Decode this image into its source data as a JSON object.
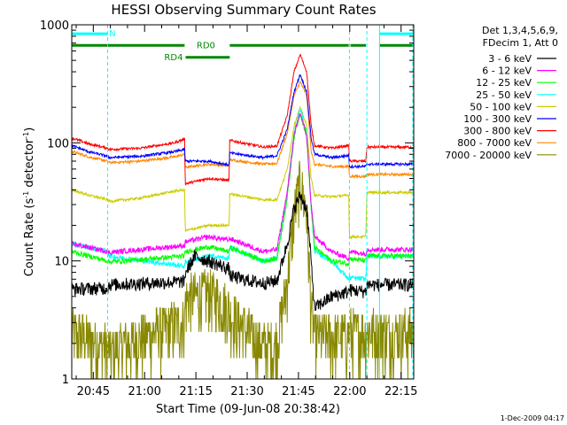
{
  "chart_data": {
    "type": "line",
    "title": "HESSI Observing Summary Count Rates",
    "xlabel": "Start Time (09-Jun-08 20:38:42)",
    "ylabel_main": "Count Rate (s",
    "ylabel_sup1": "-1",
    "ylabel_mid": " detector",
    "ylabel_sup2": "-1",
    "ylabel_end": ")",
    "yscale": "log",
    "ylim": [
      1,
      1000
    ],
    "xlim_minutes": [
      0,
      100
    ],
    "x_ticks": [
      {
        "label": "20:45",
        "t": 6.3
      },
      {
        "label": "21:00",
        "t": 21.3
      },
      {
        "label": "21:15",
        "t": 36.3
      },
      {
        "label": "21:30",
        "t": 51.3
      },
      {
        "label": "21:45",
        "t": 66.3
      },
      {
        "label": "22:00",
        "t": 81.3
      },
      {
        "label": "22:15",
        "t": 96.3
      }
    ],
    "y_ticks": [
      {
        "label": "1",
        "v": 1
      },
      {
        "label": "10",
        "v": 10
      },
      {
        "label": "100",
        "v": 100
      },
      {
        "label": "1000",
        "v": 1000
      }
    ],
    "legend_header": [
      "Det 1,3,4,5,6,9,",
      "FDecim 1, Att 0"
    ],
    "series": [
      {
        "name": "3 - 6 keV",
        "color": "#000000",
        "points": [
          [
            0,
            5.8
          ],
          [
            10.5,
            5.9
          ],
          [
            11,
            6.3
          ],
          [
            33,
            6.7
          ],
          [
            33.2,
            8.0
          ],
          [
            36,
            11
          ],
          [
            40,
            10
          ],
          [
            46,
            8.6
          ],
          [
            46.2,
            7.5
          ],
          [
            50,
            7.0
          ],
          [
            56,
            6.5
          ],
          [
            60,
            6.8
          ],
          [
            63,
            14
          ],
          [
            65,
            28
          ],
          [
            66.8,
            36
          ],
          [
            68.7,
            28
          ],
          [
            70,
            10
          ],
          [
            71,
            4.0
          ],
          [
            76,
            5.0
          ],
          [
            81,
            5.5
          ],
          [
            81.2,
            5.7
          ],
          [
            86,
            5.5
          ],
          [
            86.3,
            6.3
          ],
          [
            100,
            6.3
          ]
        ]
      },
      {
        "name": "6 - 12 keV",
        "color": "#ff00ff",
        "points": [
          [
            0,
            14
          ],
          [
            10.5,
            12
          ],
          [
            11,
            11.8
          ],
          [
            33,
            13.5
          ],
          [
            33.2,
            14.5
          ],
          [
            40,
            16
          ],
          [
            46,
            15
          ],
          [
            46.2,
            15.5
          ],
          [
            56,
            12
          ],
          [
            60,
            12.5
          ],
          [
            63,
            38
          ],
          [
            65,
            115
          ],
          [
            66.8,
            180
          ],
          [
            68.7,
            115
          ],
          [
            70,
            30
          ],
          [
            71,
            16
          ],
          [
            76,
            12
          ],
          [
            81,
            10.5
          ],
          [
            81.2,
            12
          ],
          [
            86,
            11.5
          ],
          [
            86.3,
            12.5
          ],
          [
            100,
            12.5
          ]
        ]
      },
      {
        "name": "12 - 25 keV",
        "color": "#00ff00",
        "points": [
          [
            0,
            12
          ],
          [
            10.5,
            10
          ],
          [
            11,
            9.8
          ],
          [
            33,
            11
          ],
          [
            33.2,
            12
          ],
          [
            40,
            13.2
          ],
          [
            46,
            12
          ],
          [
            46.2,
            13
          ],
          [
            56,
            10
          ],
          [
            60,
            10.5
          ],
          [
            63,
            34
          ],
          [
            65,
            112
          ],
          [
            66.8,
            180
          ],
          [
            68.7,
            112
          ],
          [
            70,
            28
          ],
          [
            71,
            13
          ],
          [
            76,
            10
          ],
          [
            81,
            9.5
          ],
          [
            81.2,
            10.5
          ],
          [
            86,
            10
          ],
          [
            86.3,
            11
          ],
          [
            100,
            11
          ]
        ]
      },
      {
        "name": "25 - 50 keV",
        "color": "#00ffff",
        "points": [
          [
            0,
            14
          ],
          [
            10.5,
            12
          ],
          [
            11,
            11
          ],
          [
            33,
            9
          ],
          [
            33.2,
            9.8
          ],
          [
            40,
            11
          ],
          [
            46,
            10.5
          ],
          [
            46.2,
            13
          ],
          [
            56,
            10
          ],
          [
            60,
            10.5
          ],
          [
            63,
            38
          ],
          [
            65,
            120
          ],
          [
            66.8,
            195
          ],
          [
            68.7,
            120
          ],
          [
            70,
            30
          ],
          [
            71,
            12
          ],
          [
            76,
            10
          ],
          [
            81,
            7.0
          ],
          [
            81.2,
            7.2
          ],
          [
            86,
            7.0
          ],
          [
            86.3,
            11
          ],
          [
            100,
            11
          ]
        ]
      },
      {
        "name": "50 - 100 keV",
        "color": "#cccc00",
        "points": [
          [
            0,
            40
          ],
          [
            5,
            36
          ],
          [
            10.5,
            33
          ],
          [
            11,
            32
          ],
          [
            20,
            34
          ],
          [
            30,
            39
          ],
          [
            33,
            40
          ],
          [
            33.2,
            18
          ],
          [
            40,
            20
          ],
          [
            46,
            20
          ],
          [
            46.2,
            37
          ],
          [
            56,
            33
          ],
          [
            60,
            33
          ],
          [
            63,
            60
          ],
          [
            65,
            140
          ],
          [
            66.8,
            200
          ],
          [
            68.7,
            140
          ],
          [
            70,
            50
          ],
          [
            71,
            36
          ],
          [
            76,
            35
          ],
          [
            81,
            36
          ],
          [
            81.2,
            16
          ],
          [
            86,
            16
          ],
          [
            86.3,
            38
          ],
          [
            100,
            38
          ]
        ]
      },
      {
        "name": "100 - 300 keV",
        "color": "#0000ff",
        "points": [
          [
            0,
            95
          ],
          [
            5,
            84
          ],
          [
            10.5,
            77
          ],
          [
            11,
            75
          ],
          [
            20,
            77
          ],
          [
            30,
            84
          ],
          [
            33,
            88
          ],
          [
            33.2,
            70
          ],
          [
            40,
            70
          ],
          [
            46,
            65
          ],
          [
            46.2,
            82
          ],
          [
            56,
            75
          ],
          [
            60,
            78
          ],
          [
            63,
            130
          ],
          [
            65,
            270
          ],
          [
            66.8,
            380
          ],
          [
            68.7,
            270
          ],
          [
            70,
            110
          ],
          [
            71,
            80
          ],
          [
            76,
            75
          ],
          [
            81,
            78
          ],
          [
            81.2,
            63
          ],
          [
            86,
            63
          ],
          [
            86.3,
            66
          ],
          [
            100,
            66
          ]
        ]
      },
      {
        "name": "300 - 800 keV",
        "color": "#ff0000",
        "points": [
          [
            0,
            110
          ],
          [
            5,
            98
          ],
          [
            10.5,
            90
          ],
          [
            11,
            88
          ],
          [
            20,
            90
          ],
          [
            30,
            100
          ],
          [
            33,
            108
          ],
          [
            33.2,
            45
          ],
          [
            40,
            50
          ],
          [
            46,
            48
          ],
          [
            46.2,
            105
          ],
          [
            56,
            92
          ],
          [
            60,
            94
          ],
          [
            63,
            170
          ],
          [
            65,
            400
          ],
          [
            66.8,
            560
          ],
          [
            68.7,
            400
          ],
          [
            70,
            140
          ],
          [
            71,
            95
          ],
          [
            76,
            90
          ],
          [
            81,
            95
          ],
          [
            81.2,
            70
          ],
          [
            86,
            70
          ],
          [
            86.3,
            92
          ],
          [
            100,
            92
          ]
        ]
      },
      {
        "name": "800 - 7000 keV",
        "color": "#ff8800",
        "points": [
          [
            0,
            85
          ],
          [
            5,
            76
          ],
          [
            10.5,
            70
          ],
          [
            11,
            68
          ],
          [
            20,
            70
          ],
          [
            30,
            76
          ],
          [
            33,
            80
          ],
          [
            33.2,
            62
          ],
          [
            40,
            66
          ],
          [
            46,
            64
          ],
          [
            46.2,
            72
          ],
          [
            56,
            66
          ],
          [
            60,
            67
          ],
          [
            63,
            120
          ],
          [
            65,
            250
          ],
          [
            66.8,
            330
          ],
          [
            68.7,
            250
          ],
          [
            70,
            85
          ],
          [
            71,
            66
          ],
          [
            76,
            63
          ],
          [
            81,
            63
          ],
          [
            81.2,
            52
          ],
          [
            86,
            52
          ],
          [
            86.3,
            54
          ],
          [
            100,
            54
          ]
        ]
      },
      {
        "name": "7000 - 20000 keV",
        "color": "#888800",
        "points": [
          [
            0,
            2.2
          ],
          [
            10.5,
            1.6
          ],
          [
            11,
            1.5
          ],
          [
            33,
            2.8
          ],
          [
            33.2,
            4.2
          ],
          [
            40,
            4.8
          ],
          [
            46,
            3.5
          ],
          [
            46.2,
            3.2
          ],
          [
            56,
            1.6
          ],
          [
            60,
            1.8
          ],
          [
            63,
            6
          ],
          [
            65,
            22
          ],
          [
            66.8,
            42
          ],
          [
            68.7,
            22
          ],
          [
            70,
            3.5
          ],
          [
            71,
            2.0
          ],
          [
            76,
            2.0
          ],
          [
            81,
            2.0
          ],
          [
            81.2,
            2.2
          ],
          [
            86,
            2.2
          ],
          [
            86.3,
            2.2
          ],
          [
            100,
            2.2
          ]
        ]
      }
    ],
    "status_bars": [
      {
        "label": "N",
        "color": "#00ffff",
        "v": 840,
        "segments": [
          [
            0,
            10.5
          ],
          [
            90,
            100
          ]
        ]
      },
      {
        "label": "RD0",
        "color": "#008800",
        "v": 670,
        "segments": [
          [
            0,
            33
          ],
          [
            46.2,
            81
          ],
          [
            81.5,
            86
          ],
          [
            90,
            100
          ]
        ]
      },
      {
        "label": "RD4",
        "color": "#008800",
        "v": 530,
        "segments": [
          [
            33.3,
            46.2
          ]
        ]
      }
    ],
    "vlines_cyan_solid": [
      90
    ],
    "vlines_cyan_dashed": [
      10.5,
      81.2,
      86.3,
      100
    ]
  },
  "footer": {
    "date_stamp": "1-Dec-2009 04:17"
  }
}
